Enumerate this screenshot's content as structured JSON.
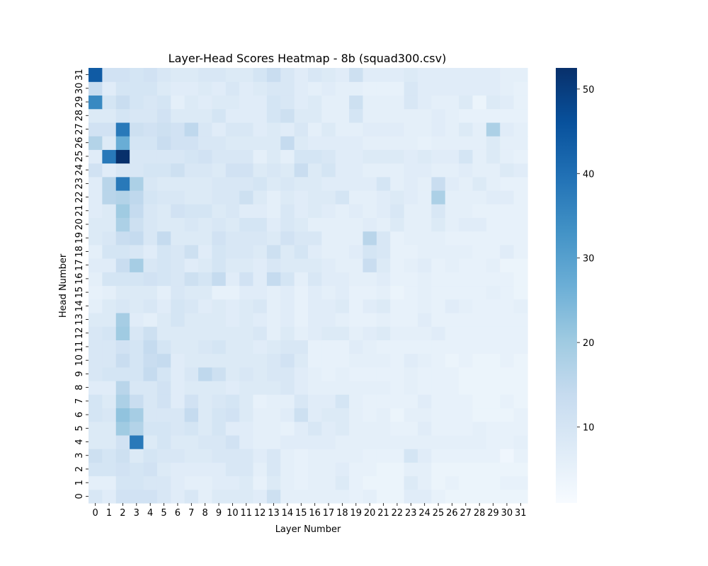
{
  "chart_data": {
    "type": "heatmap",
    "title": "Layer-Head Scores Heatmap - 8b (squad300.csv)",
    "xlabel": "Layer Number",
    "ylabel": "Head Number",
    "x_categories": [
      "0",
      "1",
      "2",
      "3",
      "4",
      "5",
      "6",
      "7",
      "8",
      "9",
      "10",
      "11",
      "12",
      "13",
      "14",
      "15",
      "16",
      "17",
      "18",
      "19",
      "20",
      "21",
      "22",
      "23",
      "24",
      "25",
      "26",
      "27",
      "28",
      "29",
      "30",
      "31"
    ],
    "y_categories": [
      "0",
      "1",
      "2",
      "3",
      "4",
      "5",
      "6",
      "7",
      "8",
      "9",
      "10",
      "11",
      "12",
      "13",
      "14",
      "15",
      "16",
      "17",
      "18",
      "19",
      "20",
      "21",
      "22",
      "23",
      "24",
      "25",
      "26",
      "27",
      "28",
      "29",
      "30",
      "31"
    ],
    "y_order": "bottom-to-top",
    "colormap": "Blues",
    "vmin": 1,
    "vmax": 52.5,
    "colorbar_ticks": [
      10,
      20,
      30,
      40,
      50
    ],
    "colorbar_tick_labels": [
      "10",
      "20",
      "30",
      "40",
      "50"
    ],
    "values_note": "rows indexed by head (0..31), columns by layer (0..31)",
    "values": [
      [
        9,
        7,
        11,
        11,
        11,
        9,
        7,
        9,
        6,
        8,
        8,
        8,
        7,
        12,
        6,
        6,
        6,
        6,
        6,
        5,
        6,
        4,
        4,
        7,
        7,
        5,
        4,
        4,
        4,
        4,
        4,
        4
      ],
      [
        6,
        6,
        10,
        10,
        9,
        9,
        7,
        6,
        6,
        7,
        7,
        8,
        5,
        8,
        6,
        5,
        6,
        6,
        8,
        5,
        4,
        4,
        4,
        8,
        6,
        4,
        5,
        4,
        4,
        4,
        5,
        5
      ],
      [
        10,
        10,
        11,
        10,
        11,
        8,
        7,
        7,
        7,
        7,
        9,
        9,
        6,
        9,
        6,
        5,
        6,
        6,
        7,
        5,
        5,
        4,
        4,
        6,
        6,
        4,
        4,
        4,
        4,
        4,
        4,
        4
      ],
      [
        12,
        10,
        12,
        8,
        10,
        9,
        9,
        8,
        8,
        9,
        9,
        9,
        7,
        9,
        6,
        5,
        6,
        6,
        6,
        6,
        5,
        5,
        5,
        10,
        7,
        5,
        5,
        5,
        5,
        5,
        3,
        5
      ],
      [
        8,
        8,
        11,
        38,
        8,
        10,
        8,
        8,
        9,
        9,
        11,
        7,
        6,
        6,
        7,
        7,
        7,
        7,
        6,
        6,
        6,
        6,
        6,
        6,
        6,
        6,
        6,
        6,
        6,
        5,
        5,
        6
      ],
      [
        8,
        8,
        20,
        17,
        10,
        10,
        9,
        10,
        8,
        10,
        7,
        7,
        6,
        6,
        5,
        7,
        9,
        7,
        8,
        6,
        6,
        6,
        5,
        5,
        7,
        5,
        5,
        5,
        6,
        5,
        5,
        5
      ],
      [
        10,
        9,
        22,
        19,
        9,
        9,
        9,
        14,
        8,
        10,
        11,
        8,
        6,
        6,
        7,
        12,
        7,
        8,
        8,
        6,
        5,
        6,
        4,
        6,
        6,
        5,
        5,
        5,
        4,
        4,
        4,
        5
      ],
      [
        10,
        8,
        18,
        13,
        9,
        11,
        7,
        11,
        8,
        9,
        10,
        8,
        5,
        6,
        6,
        9,
        7,
        7,
        10,
        6,
        5,
        5,
        5,
        5,
        7,
        5,
        5,
        5,
        4,
        4,
        5,
        4
      ],
      [
        7,
        7,
        16,
        9,
        9,
        11,
        7,
        8,
        8,
        8,
        7,
        8,
        8,
        8,
        9,
        7,
        6,
        6,
        6,
        6,
        6,
        6,
        5,
        6,
        5,
        5,
        5,
        4,
        4,
        4,
        4,
        4
      ],
      [
        9,
        10,
        10,
        10,
        14,
        10,
        7,
        9,
        15,
        12,
        8,
        9,
        8,
        9,
        9,
        7,
        6,
        5,
        6,
        5,
        5,
        5,
        5,
        6,
        5,
        5,
        5,
        4,
        4,
        4,
        4,
        4
      ],
      [
        9,
        9,
        13,
        10,
        13,
        14,
        7,
        8,
        8,
        8,
        8,
        8,
        8,
        9,
        11,
        8,
        5,
        5,
        5,
        6,
        6,
        6,
        5,
        7,
        6,
        5,
        4,
        5,
        4,
        4,
        5,
        4
      ],
      [
        9,
        9,
        11,
        10,
        14,
        10,
        8,
        8,
        9,
        10,
        8,
        8,
        7,
        8,
        9,
        9,
        5,
        5,
        5,
        7,
        6,
        5,
        5,
        5,
        5,
        5,
        5,
        5,
        5,
        5,
        5,
        5
      ],
      [
        9,
        10,
        20,
        9,
        12,
        8,
        8,
        8,
        8,
        8,
        8,
        8,
        9,
        6,
        8,
        6,
        7,
        8,
        8,
        6,
        7,
        8,
        6,
        6,
        6,
        7,
        5,
        5,
        5,
        5,
        5,
        5
      ],
      [
        8,
        8,
        19,
        7,
        6,
        8,
        10,
        8,
        8,
        8,
        7,
        8,
        7,
        6,
        7,
        5,
        7,
        7,
        6,
        5,
        5,
        6,
        5,
        5,
        7,
        5,
        5,
        5,
        5,
        5,
        5,
        5
      ],
      [
        6,
        8,
        9,
        8,
        9,
        7,
        10,
        9,
        7,
        8,
        7,
        8,
        9,
        6,
        7,
        5,
        7,
        7,
        8,
        5,
        7,
        8,
        5,
        5,
        6,
        5,
        7,
        6,
        5,
        5,
        5,
        6
      ],
      [
        5,
        6,
        8,
        8,
        8,
        6,
        9,
        8,
        8,
        5,
        5,
        7,
        7,
        6,
        7,
        5,
        7,
        6,
        7,
        5,
        5,
        6,
        4,
        5,
        6,
        5,
        5,
        5,
        5,
        6,
        5,
        4
      ],
      [
        6,
        10,
        10,
        10,
        11,
        10,
        9,
        12,
        10,
        14,
        7,
        11,
        7,
        14,
        10,
        6,
        9,
        7,
        7,
        6,
        6,
        7,
        5,
        5,
        6,
        5,
        5,
        5,
        5,
        5,
        5,
        4
      ],
      [
        7,
        7,
        13,
        19,
        9,
        10,
        9,
        7,
        8,
        10,
        8,
        8,
        7,
        9,
        8,
        8,
        8,
        7,
        6,
        6,
        13,
        8,
        5,
        6,
        7,
        5,
        6,
        5,
        5,
        6,
        4,
        4
      ],
      [
        6,
        10,
        10,
        9,
        7,
        10,
        9,
        12,
        7,
        10,
        9,
        9,
        8,
        12,
        8,
        10,
        7,
        6,
        6,
        7,
        10,
        9,
        5,
        5,
        6,
        6,
        6,
        6,
        5,
        5,
        7,
        5
      ],
      [
        8,
        9,
        13,
        14,
        9,
        14,
        8,
        8,
        8,
        11,
        9,
        9,
        9,
        8,
        11,
        9,
        9,
        6,
        6,
        6,
        16,
        9,
        5,
        6,
        6,
        6,
        5,
        5,
        5,
        5,
        5,
        5
      ],
      [
        8,
        8,
        18,
        12,
        9,
        8,
        8,
        9,
        8,
        9,
        8,
        10,
        10,
        7,
        9,
        8,
        6,
        6,
        6,
        6,
        7,
        6,
        8,
        6,
        6,
        8,
        6,
        7,
        7,
        5,
        5,
        5
      ],
      [
        7,
        8,
        20,
        14,
        9,
        8,
        11,
        10,
        10,
        8,
        9,
        7,
        7,
        6,
        9,
        7,
        8,
        7,
        6,
        7,
        6,
        7,
        9,
        6,
        6,
        9,
        6,
        6,
        5,
        5,
        5,
        5
      ],
      [
        7,
        16,
        17,
        15,
        10,
        9,
        9,
        8,
        8,
        9,
        9,
        12,
        8,
        6,
        8,
        7,
        8,
        8,
        10,
        6,
        6,
        7,
        8,
        7,
        6,
        18,
        6,
        6,
        6,
        7,
        7,
        5
      ],
      [
        7,
        16,
        38,
        18,
        9,
        8,
        8,
        8,
        8,
        9,
        9,
        9,
        10,
        8,
        9,
        8,
        8,
        7,
        7,
        7,
        7,
        10,
        6,
        7,
        6,
        13,
        7,
        6,
        8,
        6,
        5,
        5
      ],
      [
        11,
        7,
        9,
        9,
        10,
        10,
        12,
        9,
        9,
        8,
        11,
        11,
        8,
        9,
        8,
        13,
        8,
        10,
        7,
        7,
        6,
        6,
        6,
        7,
        7,
        6,
        6,
        7,
        6,
        6,
        8,
        7
      ],
      [
        7,
        38,
        52.5,
        9,
        9,
        9,
        9,
        10,
        11,
        9,
        9,
        9,
        6,
        8,
        6,
        10,
        10,
        9,
        7,
        7,
        8,
        8,
        8,
        7,
        8,
        7,
        7,
        10,
        6,
        8,
        6,
        5
      ],
      [
        17,
        8,
        27,
        10,
        10,
        13,
        11,
        11,
        9,
        9,
        8,
        8,
        8,
        8,
        14,
        8,
        7,
        7,
        7,
        7,
        6,
        6,
        6,
        6,
        5,
        6,
        6,
        6,
        6,
        8,
        6,
        6
      ],
      [
        11,
        11,
        38,
        12,
        11,
        12,
        11,
        15,
        9,
        7,
        9,
        9,
        7,
        8,
        7,
        9,
        6,
        8,
        6,
        6,
        7,
        7,
        7,
        6,
        6,
        7,
        6,
        8,
        6,
        18,
        7,
        6
      ],
      [
        8,
        8,
        10,
        9,
        9,
        11,
        8,
        8,
        8,
        10,
        7,
        7,
        7,
        10,
        12,
        8,
        8,
        6,
        6,
        10,
        6,
        6,
        6,
        6,
        6,
        7,
        6,
        5,
        5,
        5,
        5,
        5
      ],
      [
        35,
        10,
        13,
        10,
        9,
        10,
        6,
        8,
        7,
        8,
        8,
        7,
        7,
        10,
        9,
        7,
        8,
        6,
        6,
        12,
        6,
        6,
        6,
        9,
        7,
        6,
        6,
        8,
        4,
        8,
        7,
        5
      ],
      [
        13,
        7,
        10,
        10,
        10,
        8,
        7,
        7,
        8,
        7,
        9,
        7,
        8,
        9,
        9,
        7,
        6,
        7,
        6,
        6,
        5,
        5,
        5,
        9,
        7,
        7,
        7,
        7,
        7,
        7,
        6,
        5
      ],
      [
        44,
        11,
        11,
        10,
        11,
        9,
        8,
        8,
        9,
        9,
        8,
        8,
        10,
        13,
        9,
        7,
        9,
        8,
        7,
        12,
        7,
        7,
        7,
        8,
        7,
        7,
        7,
        7,
        7,
        7,
        6,
        6
      ]
    ]
  }
}
